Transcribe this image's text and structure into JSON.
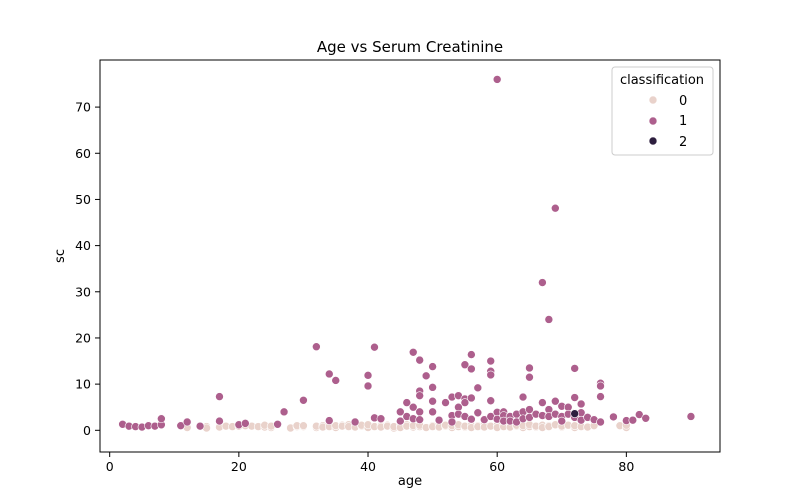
{
  "chart_data": {
    "type": "scatter",
    "title": "Age vs Serum Creatinine",
    "xlabel": "age",
    "ylabel": "sc",
    "xlim": [
      -1.5,
      94.5
    ],
    "ylim": [
      -4.7,
      80.2
    ],
    "xticks": [
      0,
      20,
      40,
      60,
      80
    ],
    "yticks": [
      0,
      10,
      20,
      30,
      40,
      50,
      60,
      70
    ],
    "grid": false,
    "legend": {
      "title": "classification",
      "placement": "top-right"
    },
    "series": [
      {
        "name": "0",
        "color": "#e9d2cb",
        "points": [
          [
            12,
            0.6
          ],
          [
            15,
            0.8
          ],
          [
            15,
            0.5
          ],
          [
            17,
            0.7
          ],
          [
            18,
            0.9
          ],
          [
            19,
            0.8
          ],
          [
            20,
            0.9
          ],
          [
            21,
            1.0
          ],
          [
            22,
            0.9
          ],
          [
            23,
            0.8
          ],
          [
            24,
            0.7
          ],
          [
            24,
            1.1
          ],
          [
            25,
            0.6
          ],
          [
            25,
            0.9
          ],
          [
            28,
            0.5
          ],
          [
            29,
            0.8
          ],
          [
            29,
            1.0
          ],
          [
            30,
            0.8
          ],
          [
            30,
            1.0
          ],
          [
            32,
            0.6
          ],
          [
            32,
            0.9
          ],
          [
            33,
            1.0
          ],
          [
            33,
            0.7
          ],
          [
            34,
            0.8
          ],
          [
            35,
            0.6
          ],
          [
            35,
            1.0
          ],
          [
            36,
            1.1
          ],
          [
            36,
            0.9
          ],
          [
            37,
            1.2
          ],
          [
            37,
            0.8
          ],
          [
            38,
            0.7
          ],
          [
            39,
            0.9
          ],
          [
            39,
            1.1
          ],
          [
            40,
            0.6
          ],
          [
            40,
            1.2
          ],
          [
            41,
            0.8
          ],
          [
            42,
            1.0
          ],
          [
            42,
            0.7
          ],
          [
            43,
            1.1
          ],
          [
            43,
            0.9
          ],
          [
            44,
            0.5
          ],
          [
            44,
            0.8
          ],
          [
            45,
            1.0
          ],
          [
            45,
            0.6
          ],
          [
            46,
            1.2
          ],
          [
            46,
            0.9
          ],
          [
            47,
            0.7
          ],
          [
            47,
            1.0
          ],
          [
            48,
            0.8
          ],
          [
            48,
            1.1
          ],
          [
            49,
            0.6
          ],
          [
            50,
            1.0
          ],
          [
            50,
            0.8
          ],
          [
            51,
            1.2
          ],
          [
            51,
            0.7
          ],
          [
            52,
            0.9
          ],
          [
            52,
            1.1
          ],
          [
            53,
            0.6
          ],
          [
            53,
            1.0
          ],
          [
            54,
            0.8
          ],
          [
            54,
            1.2
          ],
          [
            55,
            0.7
          ],
          [
            55,
            0.9
          ],
          [
            56,
            1.1
          ],
          [
            56,
            0.6
          ],
          [
            57,
            1.0
          ],
          [
            57,
            0.8
          ],
          [
            58,
            1.2
          ],
          [
            58,
            0.7
          ],
          [
            59,
            0.9
          ],
          [
            60,
            1.1
          ],
          [
            60,
            0.6
          ],
          [
            61,
            1.0
          ],
          [
            61,
            0.8
          ],
          [
            62,
            1.2
          ],
          [
            62,
            0.7
          ],
          [
            63,
            0.9
          ],
          [
            63,
            1.1
          ],
          [
            64,
            0.6
          ],
          [
            64,
            1.0
          ],
          [
            65,
            0.8
          ],
          [
            65,
            1.2
          ],
          [
            66,
            0.7
          ],
          [
            66,
            0.9
          ],
          [
            67,
            1.1
          ],
          [
            67,
            0.6
          ],
          [
            68,
            1.0
          ],
          [
            68,
            0.8
          ],
          [
            69,
            1.2
          ],
          [
            70,
            0.7
          ],
          [
            70,
            0.9
          ],
          [
            71,
            1.1
          ],
          [
            72,
            0.6
          ],
          [
            72,
            1.0
          ],
          [
            73,
            0.8
          ],
          [
            74,
            0.7
          ],
          [
            75,
            1.0
          ],
          [
            79,
            1.0
          ],
          [
            80,
            0.6
          ],
          [
            80,
            1.1
          ]
        ]
      },
      {
        "name": "1",
        "color": "#ad5f8d",
        "points": [
          [
            2,
            1.3
          ],
          [
            3,
            0.9
          ],
          [
            4,
            0.8
          ],
          [
            5,
            0.7
          ],
          [
            6,
            1.0
          ],
          [
            7,
            0.9
          ],
          [
            8,
            1.2
          ],
          [
            8,
            2.5
          ],
          [
            11,
            1.0
          ],
          [
            12,
            1.8
          ],
          [
            14,
            0.9
          ],
          [
            17,
            7.3
          ],
          [
            17,
            2.0
          ],
          [
            20,
            1.2
          ],
          [
            21,
            1.5
          ],
          [
            26,
            1.3
          ],
          [
            27,
            4.0
          ],
          [
            30,
            6.5
          ],
          [
            32,
            18.1
          ],
          [
            34,
            12.2
          ],
          [
            34,
            2.1
          ],
          [
            35,
            10.8
          ],
          [
            38,
            1.8
          ],
          [
            40,
            11.9
          ],
          [
            40,
            9.6
          ],
          [
            41,
            18.0
          ],
          [
            41,
            2.7
          ],
          [
            42,
            2.5
          ],
          [
            45,
            4.0
          ],
          [
            45,
            2.0
          ],
          [
            46,
            6.0
          ],
          [
            46,
            3.0
          ],
          [
            47,
            16.9
          ],
          [
            47,
            5.0
          ],
          [
            47,
            2.5
          ],
          [
            48,
            15.2
          ],
          [
            48,
            8.5
          ],
          [
            48,
            7.5
          ],
          [
            48,
            4.0
          ],
          [
            48,
            2.3
          ],
          [
            49,
            11.8
          ],
          [
            50,
            13.8
          ],
          [
            50,
            9.3
          ],
          [
            50,
            6.3
          ],
          [
            50,
            4.0
          ],
          [
            51,
            2.2
          ],
          [
            52,
            6.0
          ],
          [
            53,
            7.2
          ],
          [
            53,
            3.2
          ],
          [
            53,
            1.8
          ],
          [
            54,
            7.5
          ],
          [
            54,
            5.0
          ],
          [
            54,
            3.5
          ],
          [
            55,
            14.2
          ],
          [
            55,
            6.8
          ],
          [
            55,
            6.0
          ],
          [
            55,
            3.0
          ],
          [
            56,
            16.4
          ],
          [
            56,
            13.3
          ],
          [
            56,
            7.0
          ],
          [
            56,
            2.4
          ],
          [
            57,
            9.2
          ],
          [
            57,
            3.8
          ],
          [
            58,
            2.3
          ],
          [
            59,
            15.0
          ],
          [
            59,
            12.8
          ],
          [
            59,
            12.0
          ],
          [
            59,
            6.4
          ],
          [
            59,
            3.0
          ],
          [
            60,
            76.0
          ],
          [
            60,
            3.9
          ],
          [
            60,
            2.4
          ],
          [
            61,
            4.0
          ],
          [
            61,
            3.2
          ],
          [
            61,
            2.0
          ],
          [
            62,
            3.0
          ],
          [
            62,
            2.0
          ],
          [
            63,
            3.5
          ],
          [
            63,
            1.8
          ],
          [
            64,
            7.2
          ],
          [
            64,
            4.0
          ],
          [
            64,
            2.5
          ],
          [
            65,
            13.5
          ],
          [
            65,
            11.5
          ],
          [
            65,
            4.5
          ],
          [
            65,
            2.8
          ],
          [
            66,
            3.5
          ],
          [
            67,
            32.0
          ],
          [
            67,
            6.0
          ],
          [
            67,
            3.2
          ],
          [
            68,
            24.0
          ],
          [
            68,
            4.5
          ],
          [
            68,
            3.0
          ],
          [
            69,
            48.1
          ],
          [
            69,
            6.3
          ],
          [
            69,
            3.5
          ],
          [
            70,
            5.2
          ],
          [
            70,
            3.0
          ],
          [
            70,
            2.0
          ],
          [
            71,
            5.0
          ],
          [
            71,
            3.5
          ],
          [
            72,
            13.4
          ],
          [
            72,
            7.1
          ],
          [
            72,
            2.8
          ],
          [
            73,
            5.7
          ],
          [
            73,
            3.8
          ],
          [
            73,
            2.2
          ],
          [
            74,
            2.8
          ],
          [
            75,
            2.3
          ],
          [
            76,
            10.2
          ],
          [
            76,
            9.6
          ],
          [
            76,
            7.3
          ],
          [
            76,
            1.8
          ],
          [
            78,
            2.9
          ],
          [
            80,
            2.1
          ],
          [
            81,
            2.2
          ],
          [
            82,
            3.4
          ],
          [
            83,
            2.6
          ],
          [
            90,
            3.0
          ]
        ]
      },
      {
        "name": "2",
        "color": "#2d1e3e",
        "points": [
          [
            72,
            3.6
          ]
        ]
      }
    ]
  }
}
